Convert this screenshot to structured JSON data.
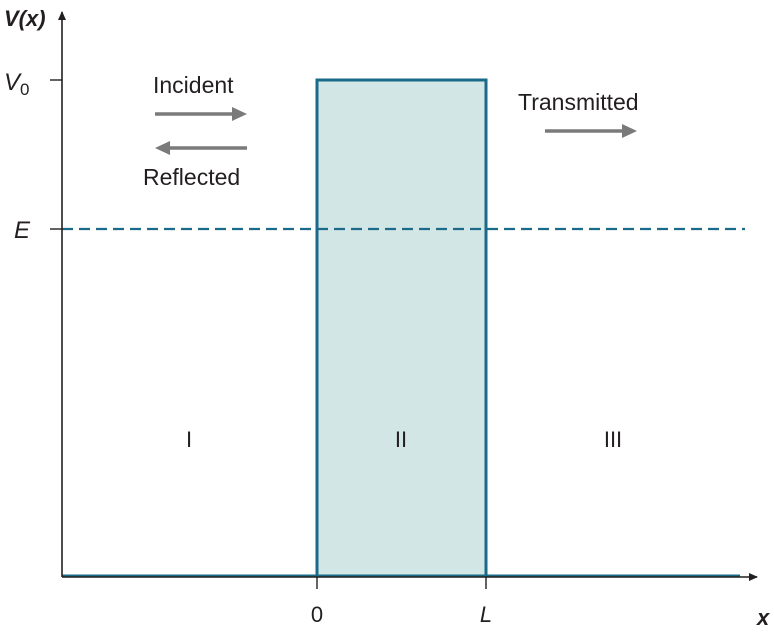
{
  "axes": {
    "y_label": "V(x)",
    "x_label": "x"
  },
  "ticks": {
    "v0_base": "V",
    "v0_sub": "0",
    "e": "E",
    "zero": "0",
    "l": "L"
  },
  "arrows": {
    "incident": "Incident",
    "reflected": "Reflected",
    "transmitted": "Transmitted"
  },
  "regions": {
    "region1": "I",
    "region2": "II",
    "region3": "III"
  },
  "colors": {
    "barrier_fill": "#d3e6e6",
    "barrier_stroke": "#1a6a8a",
    "energy_line": "#1a6a8a",
    "arrow": "#7a7a7a",
    "axis": "#231f20"
  }
}
